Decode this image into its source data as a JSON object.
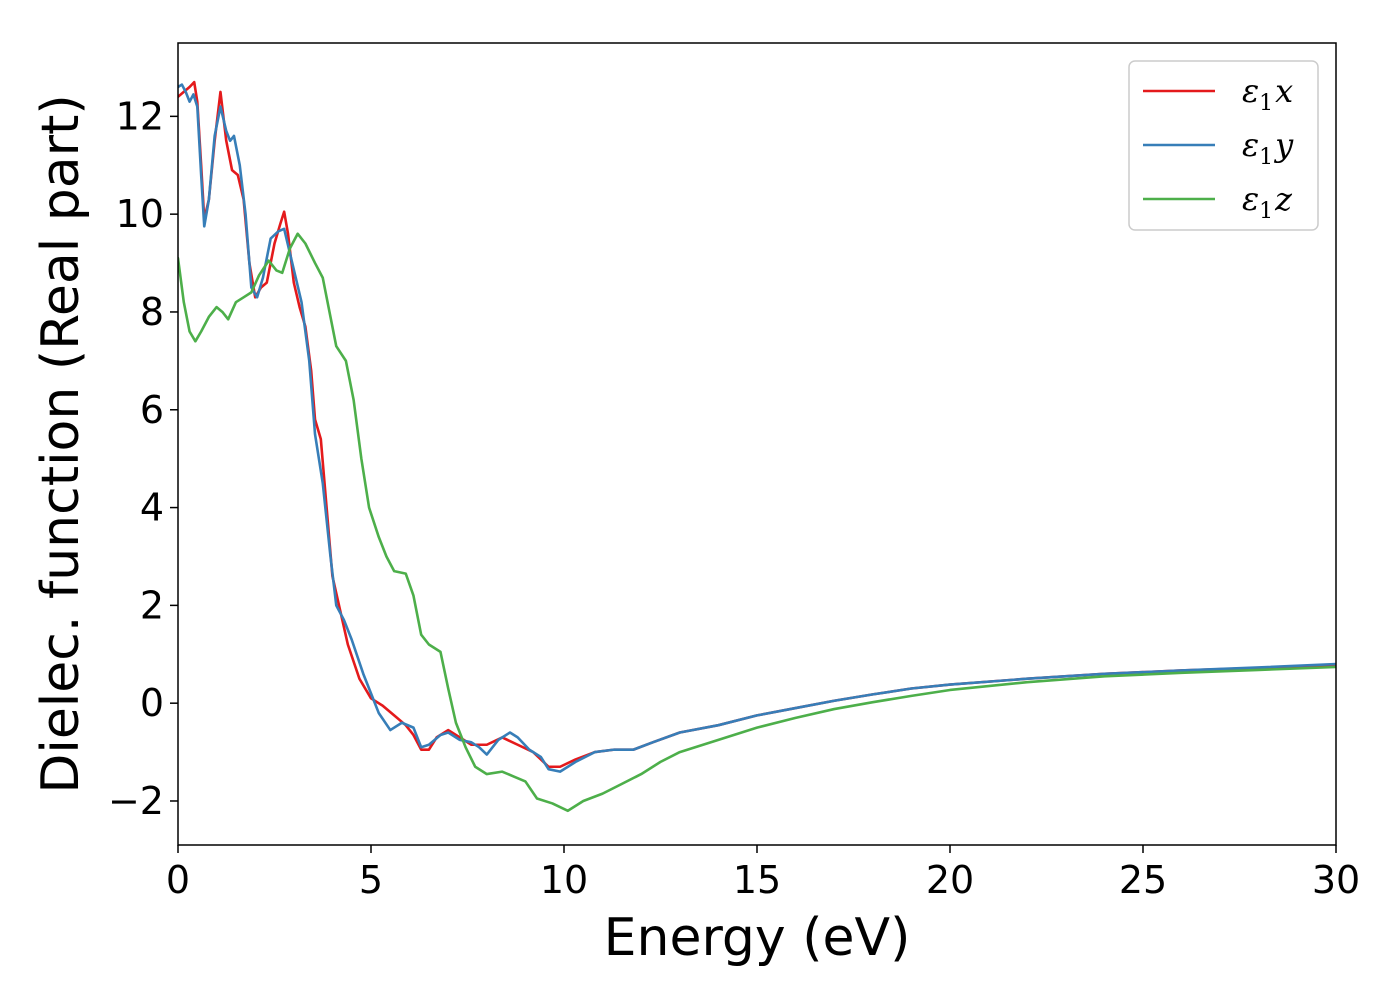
{
  "chart_data": {
    "type": "line",
    "title": "",
    "xlabel": "Energy (eV)",
    "ylabel": "Dielec. function (Real part)",
    "xlim": [
      0,
      30
    ],
    "ylim": [
      -2.9,
      13.5
    ],
    "xticks": [
      0,
      5,
      10,
      15,
      20,
      25,
      30
    ],
    "xtick_labels": [
      "0",
      "5",
      "10",
      "15",
      "20",
      "25",
      "30"
    ],
    "yticks": [
      -2,
      0,
      2,
      4,
      6,
      8,
      10,
      12
    ],
    "ytick_labels": [
      "−2",
      "0",
      "2",
      "4",
      "6",
      "8",
      "10",
      "12"
    ],
    "grid": false,
    "legend_position": "top-right",
    "series": [
      {
        "name": "x",
        "legend_base": "ε",
        "legend_sub": "1",
        "legend_var": "x",
        "color": "#e41a1c",
        "points": [
          [
            0,
            12.4
          ],
          [
            0.15,
            12.5
          ],
          [
            0.3,
            12.6
          ],
          [
            0.42,
            12.7
          ],
          [
            0.5,
            12.3
          ],
          [
            0.6,
            11.0
          ],
          [
            0.68,
            9.9
          ],
          [
            0.8,
            10.3
          ],
          [
            0.95,
            11.5
          ],
          [
            1.1,
            12.5
          ],
          [
            1.25,
            11.5
          ],
          [
            1.4,
            10.9
          ],
          [
            1.55,
            10.8
          ],
          [
            1.7,
            10.3
          ],
          [
            1.85,
            9.0
          ],
          [
            2.0,
            8.3
          ],
          [
            2.15,
            8.5
          ],
          [
            2.3,
            8.6
          ],
          [
            2.5,
            9.4
          ],
          [
            2.65,
            9.8
          ],
          [
            2.75,
            10.05
          ],
          [
            2.85,
            9.6
          ],
          [
            3.0,
            8.6
          ],
          [
            3.15,
            8.1
          ],
          [
            3.3,
            7.7
          ],
          [
            3.45,
            6.8
          ],
          [
            3.55,
            5.8
          ],
          [
            3.7,
            5.4
          ],
          [
            3.85,
            4.0
          ],
          [
            4.0,
            2.6
          ],
          [
            4.2,
            1.9
          ],
          [
            4.4,
            1.2
          ],
          [
            4.7,
            0.5
          ],
          [
            5.0,
            0.1
          ],
          [
            5.3,
            -0.05
          ],
          [
            5.6,
            -0.25
          ],
          [
            5.9,
            -0.45
          ],
          [
            6.1,
            -0.65
          ],
          [
            6.3,
            -0.95
          ],
          [
            6.5,
            -0.95
          ],
          [
            6.7,
            -0.7
          ],
          [
            7.0,
            -0.55
          ],
          [
            7.3,
            -0.7
          ],
          [
            7.6,
            -0.85
          ],
          [
            8.0,
            -0.85
          ],
          [
            8.4,
            -0.7
          ],
          [
            8.8,
            -0.85
          ],
          [
            9.2,
            -1.0
          ],
          [
            9.6,
            -1.3
          ],
          [
            9.9,
            -1.3
          ],
          [
            10.3,
            -1.15
          ],
          [
            10.8,
            -1.0
          ],
          [
            11.3,
            -0.95
          ],
          [
            11.8,
            -0.95
          ],
          [
            12.3,
            -0.8
          ],
          [
            13.0,
            -0.6
          ],
          [
            14.0,
            -0.45
          ],
          [
            15.0,
            -0.25
          ],
          [
            16.0,
            -0.1
          ],
          [
            17.0,
            0.05
          ],
          [
            18.0,
            0.18
          ],
          [
            19.0,
            0.3
          ],
          [
            20.0,
            0.38
          ],
          [
            22.0,
            0.5
          ],
          [
            24.0,
            0.6
          ],
          [
            26.0,
            0.67
          ],
          [
            28.0,
            0.72
          ],
          [
            30.0,
            0.78
          ]
        ]
      },
      {
        "name": "y",
        "legend_base": "ε",
        "legend_sub": "1",
        "legend_var": "y",
        "color": "#377eb8",
        "points": [
          [
            0,
            12.6
          ],
          [
            0.1,
            12.65
          ],
          [
            0.2,
            12.5
          ],
          [
            0.3,
            12.3
          ],
          [
            0.4,
            12.45
          ],
          [
            0.5,
            12.2
          ],
          [
            0.6,
            10.8
          ],
          [
            0.68,
            9.75
          ],
          [
            0.8,
            10.3
          ],
          [
            0.95,
            11.6
          ],
          [
            1.1,
            12.2
          ],
          [
            1.25,
            11.7
          ],
          [
            1.35,
            11.5
          ],
          [
            1.45,
            11.6
          ],
          [
            1.6,
            11.0
          ],
          [
            1.75,
            10.0
          ],
          [
            1.9,
            8.5
          ],
          [
            2.05,
            8.3
          ],
          [
            2.2,
            8.7
          ],
          [
            2.4,
            9.5
          ],
          [
            2.6,
            9.65
          ],
          [
            2.75,
            9.7
          ],
          [
            2.9,
            9.2
          ],
          [
            3.05,
            8.7
          ],
          [
            3.2,
            8.2
          ],
          [
            3.4,
            7.0
          ],
          [
            3.55,
            5.5
          ],
          [
            3.75,
            4.5
          ],
          [
            3.95,
            3.0
          ],
          [
            4.1,
            2.0
          ],
          [
            4.3,
            1.7
          ],
          [
            4.5,
            1.3
          ],
          [
            4.8,
            0.6
          ],
          [
            5.0,
            0.2
          ],
          [
            5.2,
            -0.2
          ],
          [
            5.5,
            -0.55
          ],
          [
            5.8,
            -0.4
          ],
          [
            6.1,
            -0.5
          ],
          [
            6.3,
            -0.9
          ],
          [
            6.5,
            -0.85
          ],
          [
            6.8,
            -0.65
          ],
          [
            7.0,
            -0.6
          ],
          [
            7.3,
            -0.75
          ],
          [
            7.6,
            -0.8
          ],
          [
            7.8,
            -0.9
          ],
          [
            8.0,
            -1.05
          ],
          [
            8.3,
            -0.75
          ],
          [
            8.6,
            -0.6
          ],
          [
            8.8,
            -0.7
          ],
          [
            9.1,
            -0.95
          ],
          [
            9.4,
            -1.1
          ],
          [
            9.6,
            -1.35
          ],
          [
            9.9,
            -1.4
          ],
          [
            10.3,
            -1.2
          ],
          [
            10.8,
            -1.0
          ],
          [
            11.3,
            -0.95
          ],
          [
            11.8,
            -0.95
          ],
          [
            12.3,
            -0.8
          ],
          [
            13.0,
            -0.6
          ],
          [
            14.0,
            -0.45
          ],
          [
            15.0,
            -0.25
          ],
          [
            16.0,
            -0.1
          ],
          [
            17.0,
            0.05
          ],
          [
            18.0,
            0.18
          ],
          [
            19.0,
            0.3
          ],
          [
            20.0,
            0.38
          ],
          [
            22.0,
            0.5
          ],
          [
            24.0,
            0.6
          ],
          [
            26.0,
            0.67
          ],
          [
            28.0,
            0.73
          ],
          [
            30.0,
            0.8
          ]
        ]
      },
      {
        "name": "z",
        "legend_base": "ε",
        "legend_sub": "1",
        "legend_var": "z",
        "color": "#4daf4a",
        "points": [
          [
            0,
            9.1
          ],
          [
            0.15,
            8.2
          ],
          [
            0.3,
            7.6
          ],
          [
            0.45,
            7.4
          ],
          [
            0.6,
            7.6
          ],
          [
            0.8,
            7.9
          ],
          [
            1.0,
            8.1
          ],
          [
            1.15,
            8.0
          ],
          [
            1.3,
            7.85
          ],
          [
            1.5,
            8.2
          ],
          [
            1.7,
            8.3
          ],
          [
            1.9,
            8.4
          ],
          [
            2.1,
            8.75
          ],
          [
            2.35,
            9.05
          ],
          [
            2.55,
            8.85
          ],
          [
            2.7,
            8.8
          ],
          [
            2.9,
            9.3
          ],
          [
            3.1,
            9.6
          ],
          [
            3.3,
            9.4
          ],
          [
            3.55,
            9.0
          ],
          [
            3.75,
            8.7
          ],
          [
            3.9,
            8.1
          ],
          [
            4.1,
            7.3
          ],
          [
            4.35,
            7.0
          ],
          [
            4.55,
            6.2
          ],
          [
            4.75,
            5.0
          ],
          [
            4.95,
            4.0
          ],
          [
            5.2,
            3.4
          ],
          [
            5.4,
            3.0
          ],
          [
            5.6,
            2.7
          ],
          [
            5.9,
            2.65
          ],
          [
            6.1,
            2.2
          ],
          [
            6.3,
            1.4
          ],
          [
            6.5,
            1.2
          ],
          [
            6.8,
            1.05
          ],
          [
            7.0,
            0.3
          ],
          [
            7.2,
            -0.4
          ],
          [
            7.45,
            -0.9
          ],
          [
            7.7,
            -1.3
          ],
          [
            8.0,
            -1.45
          ],
          [
            8.4,
            -1.4
          ],
          [
            8.7,
            -1.5
          ],
          [
            9.0,
            -1.6
          ],
          [
            9.3,
            -1.95
          ],
          [
            9.7,
            -2.05
          ],
          [
            10.1,
            -2.2
          ],
          [
            10.5,
            -2.0
          ],
          [
            11.0,
            -1.85
          ],
          [
            11.5,
            -1.65
          ],
          [
            12.0,
            -1.45
          ],
          [
            12.5,
            -1.2
          ],
          [
            13.0,
            -1.0
          ],
          [
            14.0,
            -0.75
          ],
          [
            15.0,
            -0.5
          ],
          [
            16.0,
            -0.3
          ],
          [
            17.0,
            -0.12
          ],
          [
            18.0,
            0.02
          ],
          [
            19.0,
            0.15
          ],
          [
            20.0,
            0.27
          ],
          [
            22.0,
            0.43
          ],
          [
            24.0,
            0.55
          ],
          [
            26.0,
            0.62
          ],
          [
            28.0,
            0.68
          ],
          [
            30.0,
            0.74
          ]
        ]
      }
    ]
  }
}
